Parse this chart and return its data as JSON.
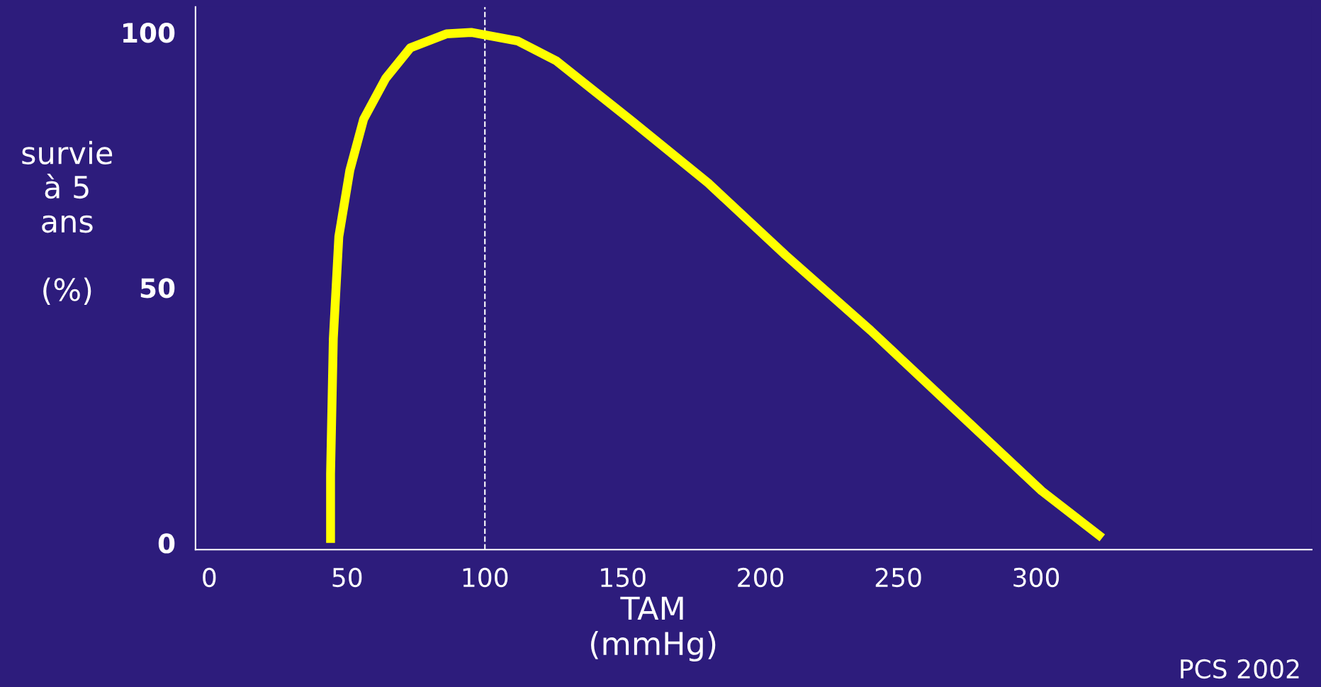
{
  "chart_data": {
    "type": "line",
    "xlabel": "TAM\n(mmHg)",
    "ylabel": "survie\nà 5\nans\n\n(%)",
    "annotations": [
      "PCS 2002"
    ],
    "x": [
      44,
      44,
      45,
      47,
      51,
      56,
      64,
      73,
      86,
      95,
      112,
      126,
      153,
      181,
      209,
      240,
      271,
      302,
      324
    ],
    "series": [
      {
        "color": "#ffff00",
        "values": [
          0,
          13.5,
          40,
          60,
          73,
          83,
          91,
          97,
          99.7,
          100,
          98.3,
          94.4,
          82.8,
          70.5,
          56.4,
          41.6,
          25.9,
          10.2,
          1
        ]
      }
    ],
    "xlim": [
      -5,
      400
    ],
    "xticks": [
      0,
      50,
      100,
      150,
      200,
      250,
      300
    ],
    "ylim": [
      -1.3,
      105
    ],
    "yticks": [
      0,
      50,
      100
    ],
    "ref_lines": [
      {
        "axis": "x",
        "value": 100,
        "color": "#ffffff",
        "line_style": "dashed"
      }
    ],
    "grid": false,
    "legend": false,
    "marker": "none",
    "line_style": "solid"
  }
}
